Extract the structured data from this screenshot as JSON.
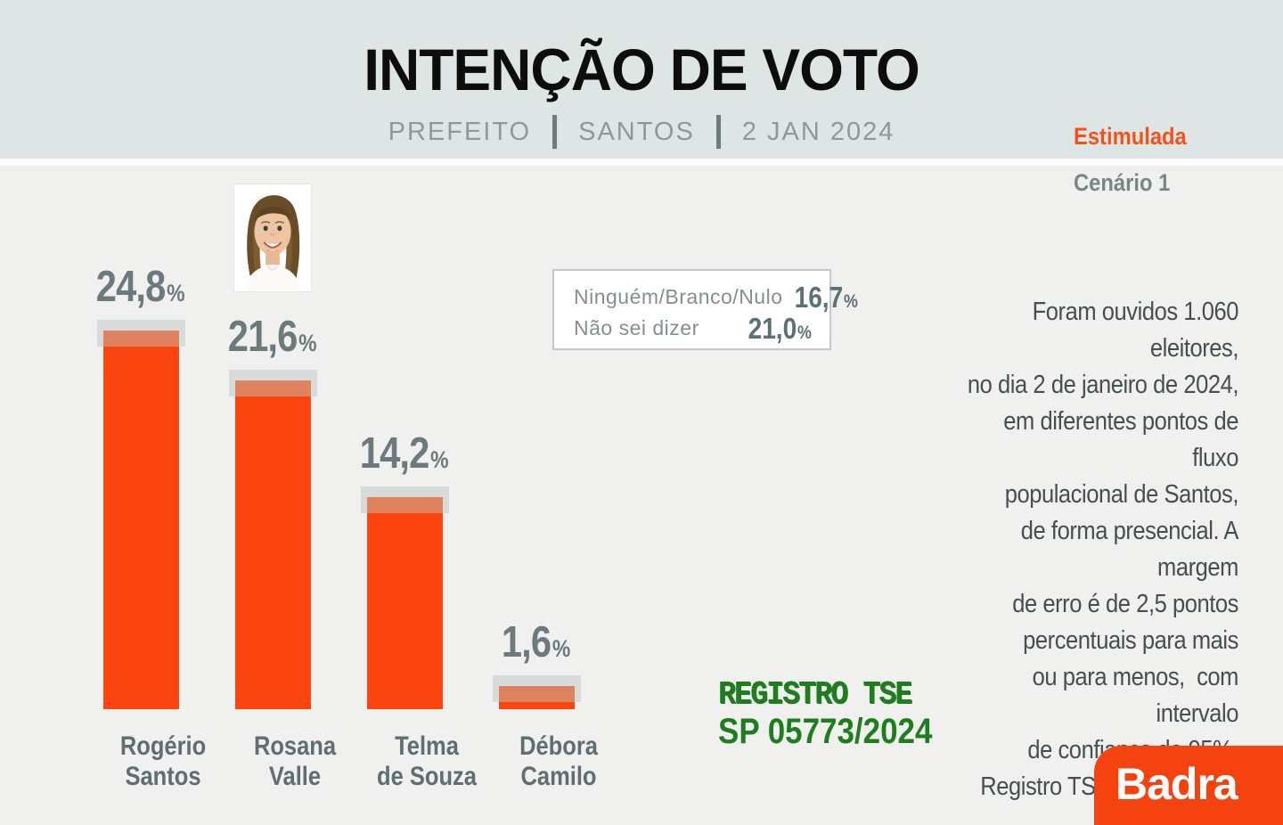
{
  "header": {
    "title": "INTENÇÃO DE VOTO",
    "subtitle_parts": [
      "PREFEITO",
      "SANTOS",
      "2 JAN 2024"
    ],
    "tag": "Estimulada",
    "scenario": "Cenário 1"
  },
  "chart_data": {
    "type": "bar",
    "title": "INTENÇÃO DE VOTO",
    "subtitle": "PREFEITO | SANTOS | 2 JAN 2024",
    "categories": [
      "Rogério Santos",
      "Rosana Valle",
      "Telma de Souza",
      "Débora Camilo"
    ],
    "values": [
      24.8,
      21.6,
      14.2,
      1.6
    ],
    "unit": "%",
    "bar_color": "#fb4511",
    "other_responses": [
      {
        "label": "Ninguém/Branco/Nulo",
        "value": 16.7
      },
      {
        "label": "Não sei dizer",
        "value": 21.0
      }
    ],
    "ylim": [
      0,
      30
    ],
    "grid": false,
    "legend_position": "none"
  },
  "candidates": [
    {
      "name": "Rogério\nSantos",
      "value_label": "24,8"
    },
    {
      "name": "Rosana\nValle",
      "value_label": "21,6"
    },
    {
      "name": "Telma\nde Souza",
      "value_label": "14,2"
    },
    {
      "name": "Débora\nCamilo",
      "value_label": "1,6"
    }
  ],
  "percent_sign": "%",
  "others_box": {
    "rows": [
      {
        "label": "Ninguém/Branco/Nulo",
        "value_label": "16,7"
      },
      {
        "label": "Não sei dizer",
        "value_label": "21,0"
      }
    ]
  },
  "methodology": {
    "text": "Foram ouvidos 1.060 eleitores,\nno dia 2 de janeiro de 2024,\nem diferentes pontos de fluxo\npopulacional de Santos,\nde forma presencial. A margem\nde erro é de 2,5 pontos\npercentuais para mais\nou para menos,  com intervalo\nde confiança de 95%.\nRegistro TSE 05773/2024."
  },
  "stamp": {
    "line1": "REGISTRO TSE",
    "line2": "SP 05773/2024"
  },
  "logo": {
    "text": "Badra"
  },
  "colors": {
    "bar_orange": "#fb4511",
    "bar_top_salmon": "#de8260",
    "bar_cap_gray": "#d7dcda",
    "accent_orange": "#f4511b",
    "logo_orange": "#f4430e",
    "stamp_green": "#1e7d1e",
    "header_band": "#dee5e5",
    "background": "#f0f0ee",
    "text_gray": "#6b7a7d"
  }
}
